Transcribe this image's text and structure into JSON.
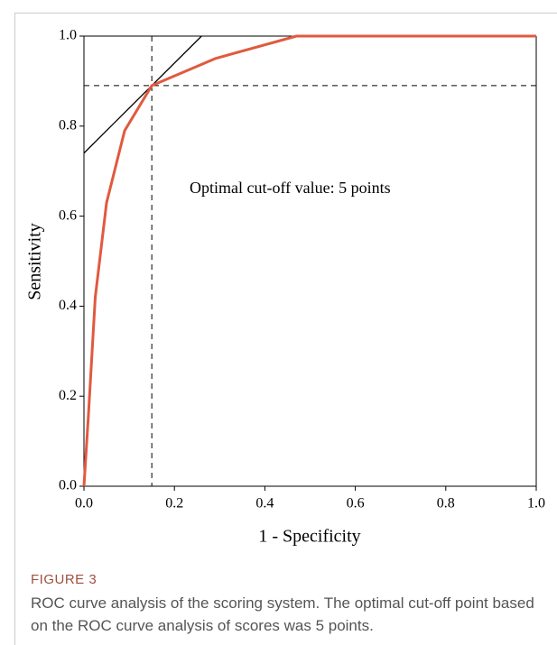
{
  "chart_data": {
    "type": "line",
    "xlabel": "1 - Specificity",
    "ylabel": "Sensitivity",
    "annotation": "Optimal cut-off value: 5 points",
    "x": [
      0,
      0.01,
      0.025,
      0.05,
      0.09,
      0.15,
      0.29,
      0.47,
      1.0
    ],
    "series": [
      {
        "color": "#e05a3f",
        "values": [
          0,
          0.16,
          0.42,
          0.63,
          0.79,
          0.89,
          0.95,
          1.0,
          1.0
        ]
      }
    ],
    "reference_line": {
      "x": [
        0,
        0.26
      ],
      "y": [
        0.74,
        1.0
      ],
      "color": "#000000"
    },
    "cutoff": {
      "x": 0.15,
      "y": 0.89
    },
    "xlim": [
      0,
      1
    ],
    "ylim": [
      0,
      1
    ],
    "xticks": [
      {
        "value": 0,
        "label": "0.0"
      },
      {
        "value": 0.2,
        "label": "0.2"
      },
      {
        "value": 0.4,
        "label": "0.4"
      },
      {
        "value": 0.6,
        "label": "0.6"
      },
      {
        "value": 0.8,
        "label": "0.8"
      },
      {
        "value": 1,
        "label": "1.0"
      }
    ],
    "yticks": [
      {
        "value": 0,
        "label": "0.0"
      },
      {
        "value": 0.2,
        "label": "0.2"
      },
      {
        "value": 0.4,
        "label": "0.4"
      },
      {
        "value": 0.6,
        "label": "0.6"
      },
      {
        "value": 0.8,
        "label": "0.8"
      },
      {
        "value": 1,
        "label": "1.0"
      }
    ]
  },
  "caption": {
    "label": "FIGURE 3",
    "text": "ROC curve analysis of the scoring system. The optimal cut-off point based on the ROC curve analysis of scores was 5 points."
  }
}
